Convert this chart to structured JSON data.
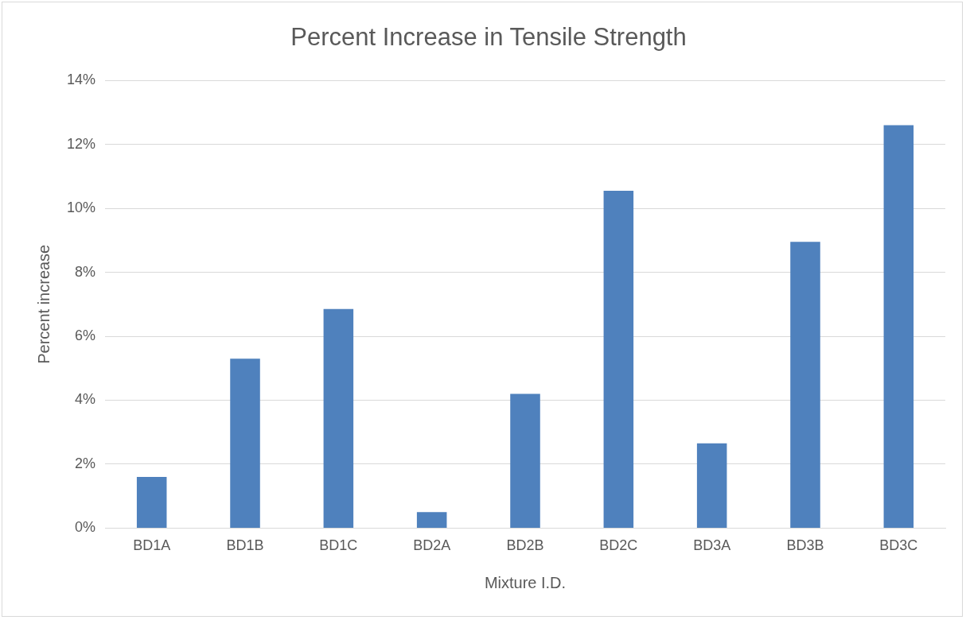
{
  "chart_data": {
    "type": "bar",
    "title": "Percent Increase in Tensile Strength",
    "xlabel": "Mixture I.D.",
    "ylabel": "Percent increase",
    "categories": [
      "BD1A",
      "BD1B",
      "BD1C",
      "BD2A",
      "BD2B",
      "BD2C",
      "BD3A",
      "BD3B",
      "BD3C"
    ],
    "values": [
      1.6,
      5.3,
      6.85,
      0.5,
      4.2,
      10.55,
      2.65,
      8.95,
      12.6
    ],
    "color": "#4f81bd",
    "ylim": [
      0,
      14
    ],
    "yticks": [
      {
        "value": 0,
        "label": "0%"
      },
      {
        "value": 2,
        "label": "2%"
      },
      {
        "value": 4,
        "label": "4%"
      },
      {
        "value": 6,
        "label": "6%"
      },
      {
        "value": 8,
        "label": "8%"
      },
      {
        "value": 10,
        "label": "10%"
      },
      {
        "value": 12,
        "label": "12%"
      },
      {
        "value": 14,
        "label": "14%"
      }
    ],
    "grid": "y",
    "legend": false
  }
}
